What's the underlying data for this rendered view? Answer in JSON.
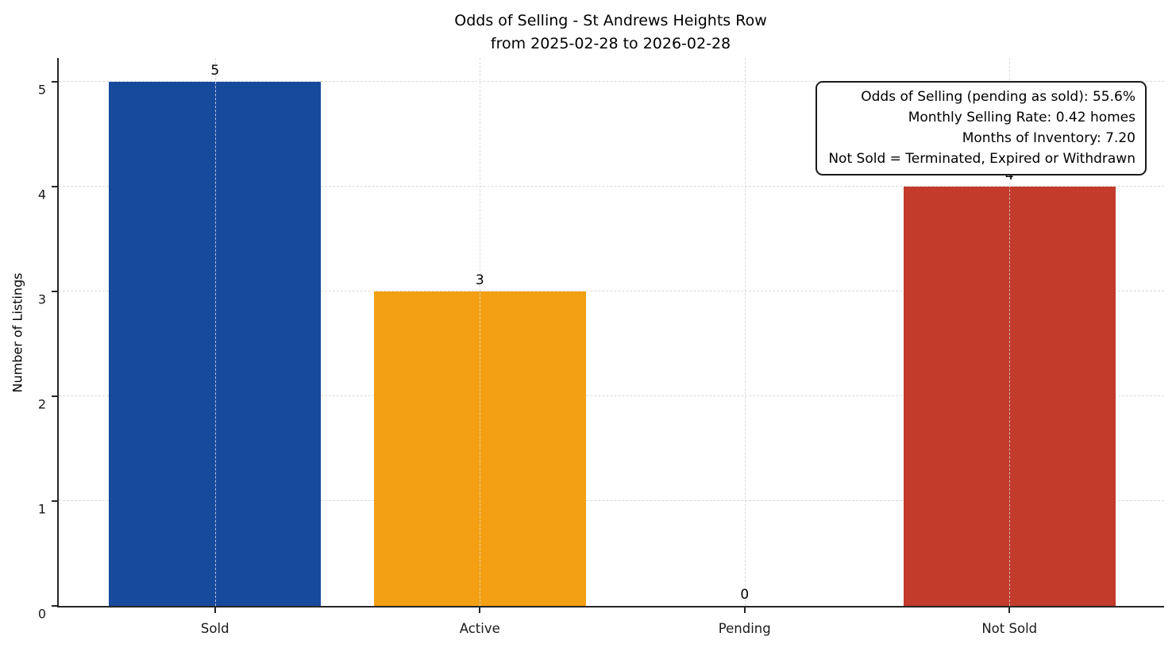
{
  "chart_data": {
    "type": "bar",
    "title_line1": "Odds of Selling - St Andrews Heights Row",
    "title_line2": "from 2025-02-28 to 2026-02-28",
    "categories": [
      "Sold",
      "Active",
      "Pending",
      "Not Sold"
    ],
    "values": [
      5,
      3,
      0,
      4
    ],
    "bar_colors": [
      "#164a9c",
      "#f4a014",
      "#999999",
      "#c23b2b"
    ],
    "bar_value_labels": [
      "5",
      "3",
      "0",
      "4"
    ],
    "xlabel": "",
    "ylabel": "Number of Listings",
    "ylim": [
      0,
      5.24
    ],
    "yticks": [
      "0",
      "1",
      "2",
      "3",
      "4",
      "5"
    ],
    "grid": {
      "visible": true,
      "style": "dashed",
      "axes": "both",
      "color": "#d9d9d9"
    },
    "legend": "none",
    "annotation_box": {
      "position": "top-right",
      "lines": [
        "Odds of Selling (pending as sold): 55.6%",
        "Monthly Selling Rate: 0.42 homes",
        "Months of Inventory: 7.20",
        "Not Sold = Terminated, Expired or Withdrawn"
      ]
    },
    "colors": {
      "axis_spine": "#262626",
      "text": "#000000",
      "background": "#ffffff"
    }
  }
}
